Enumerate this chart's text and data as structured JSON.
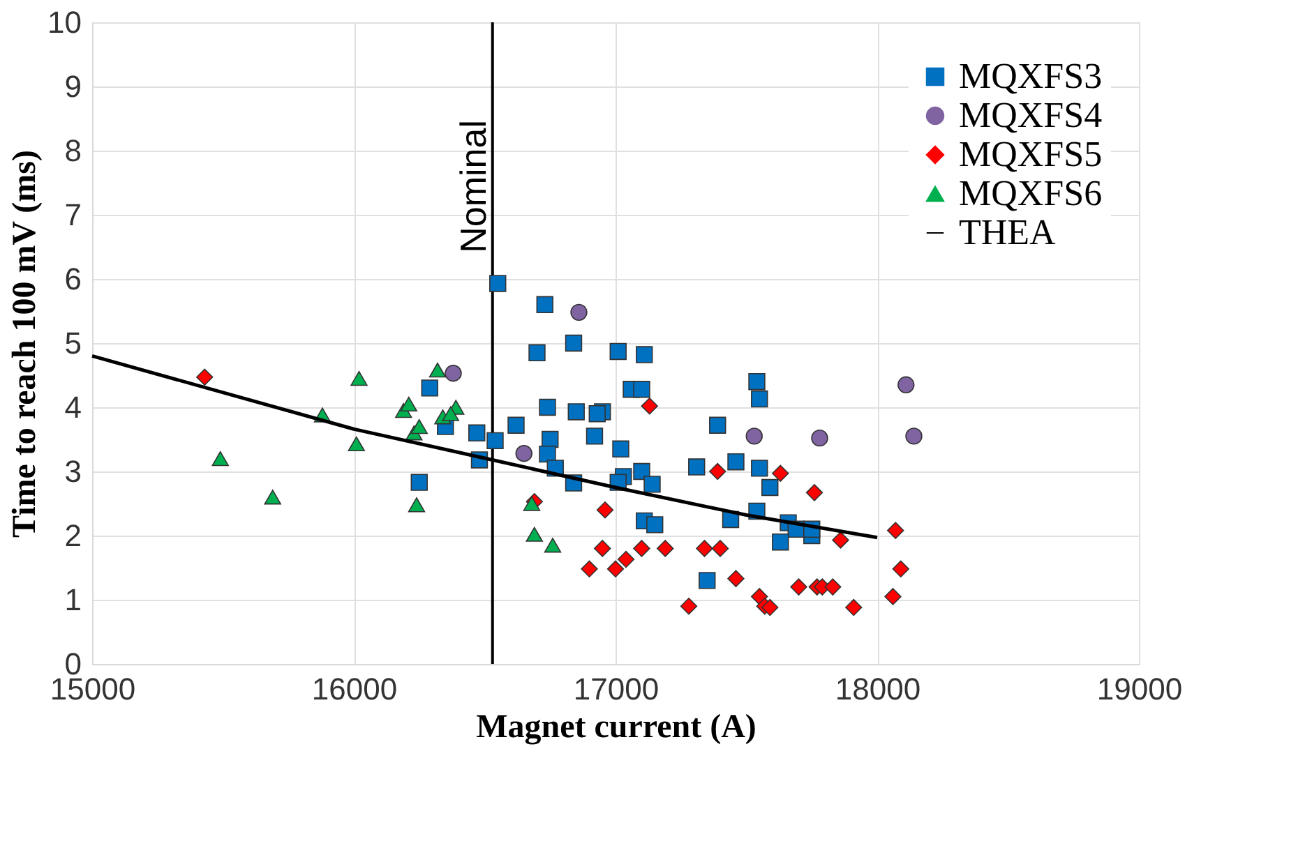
{
  "chart_data": {
    "type": "scatter",
    "xlabel": "Magnet current (A)",
    "ylabel": "Time to reach 100 mV (ms)",
    "xlim": [
      15000,
      19000
    ],
    "xticks": [
      15000,
      16000,
      17000,
      18000,
      19000
    ],
    "ylim": [
      0,
      10
    ],
    "yticks": [
      0,
      1,
      2,
      3,
      4,
      5,
      6,
      7,
      8,
      9,
      10
    ],
    "grid": true,
    "legend": "top right",
    "ref_lines": [
      {
        "axis": "x",
        "value": 16530,
        "label": "Nominal",
        "color": "#000000",
        "line_style": "solid"
      }
    ],
    "series": [
      {
        "name": "MQXFS3",
        "marker": "square",
        "color": "#0070c0",
        "x": [
          16550,
          16730,
          16700,
          16840,
          17010,
          17110,
          16740,
          16850,
          16950,
          16930,
          17060,
          17100,
          17540,
          17550,
          16620,
          16470,
          16540,
          16350,
          16290,
          16750,
          16740,
          16770,
          16480,
          16250,
          16840,
          17020,
          16920,
          17030,
          17100,
          17010,
          17140,
          17110,
          17150,
          17310,
          17390,
          17460,
          17440,
          17550,
          17540,
          17590,
          17660,
          17690,
          17630,
          17750,
          17750,
          17350
        ],
        "values": [
          5.93,
          5.6,
          4.85,
          5.0,
          4.87,
          4.82,
          4.0,
          3.93,
          3.93,
          3.9,
          4.28,
          4.28,
          4.4,
          4.13,
          3.72,
          3.6,
          3.48,
          3.7,
          4.3,
          3.5,
          3.27,
          3.05,
          3.18,
          2.83,
          2.82,
          3.35,
          3.55,
          2.92,
          3.0,
          2.83,
          2.8,
          2.23,
          2.17,
          3.07,
          3.72,
          3.15,
          2.25,
          3.05,
          2.38,
          2.75,
          2.2,
          2.1,
          1.9,
          2.0,
          2.1,
          1.3
        ]
      },
      {
        "name": "MQXFS4",
        "marker": "circle",
        "color": "#8064a2",
        "x": [
          16380,
          16650,
          16860,
          17530,
          17780,
          18110,
          18140
        ],
        "values": [
          4.53,
          3.28,
          5.48,
          3.55,
          3.52,
          4.35,
          3.55
        ]
      },
      {
        "name": "MQXFS5",
        "marker": "diamond",
        "color": "#ff0000",
        "x": [
          15430,
          16690,
          17130,
          16960,
          16900,
          16950,
          17000,
          17040,
          17100,
          17190,
          17280,
          17340,
          17400,
          17390,
          17460,
          17550,
          17570,
          17590,
          17630,
          17700,
          17760,
          17770,
          17790,
          17830,
          17860,
          17910,
          18060,
          18070,
          18090
        ],
        "values": [
          4.47,
          2.53,
          4.02,
          2.4,
          1.48,
          1.8,
          1.48,
          1.63,
          1.8,
          1.8,
          0.9,
          1.8,
          1.8,
          3.0,
          1.33,
          1.05,
          0.9,
          0.88,
          2.97,
          1.2,
          2.67,
          1.2,
          1.2,
          1.2,
          1.93,
          0.88,
          1.05,
          2.08,
          1.48
        ]
      },
      {
        "name": "MQXFS6",
        "marker": "triangle",
        "color": "#00b050",
        "x": [
          15490,
          15690,
          15880,
          16010,
          16020,
          16190,
          16210,
          16230,
          16250,
          16240,
          16320,
          16340,
          16390,
          16370,
          16680,
          16690,
          16760
        ],
        "values": [
          3.2,
          2.6,
          3.88,
          3.43,
          4.45,
          3.95,
          4.05,
          3.6,
          3.7,
          2.48,
          4.58,
          3.85,
          4.0,
          3.9,
          2.5,
          2.02,
          1.85
        ]
      },
      {
        "name": "THEA",
        "type": "line",
        "marker": "none",
        "line_style": "solid",
        "color": "#000000",
        "x": [
          15000,
          16000,
          16530,
          17000,
          17500,
          18000
        ],
        "values": [
          4.8,
          3.66,
          3.18,
          2.75,
          2.32,
          1.97
        ]
      }
    ]
  }
}
